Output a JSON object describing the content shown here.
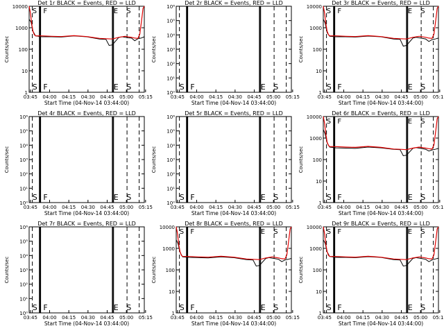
{
  "chart_data": [
    {
      "type": "line",
      "title": "Det 1r BLACK = Events, RED = LLD",
      "xlabel": "Start Time (04-Nov-14 03:44:00)",
      "ylabel": "Counts/sec",
      "yscale": "log",
      "ylim": [
        1,
        10000
      ],
      "y_ticks": [
        "1",
        "10",
        "100",
        "1000",
        "10000"
      ],
      "x_ticks": [
        "03:45",
        "04:00",
        "04:15",
        "04:30",
        "04:45",
        "05:00",
        "05:15"
      ],
      "markers": [
        "S",
        "F",
        "E",
        "S"
      ],
      "series": [
        {
          "color": "#000000",
          "x": [
            0,
            3,
            6,
            10,
            20,
            35,
            50,
            70,
            90,
            110,
            120,
            125,
            130,
            140,
            145,
            150,
            155,
            160,
            165,
            170,
            175,
            180
          ],
          "y": [
            2500,
            1800,
            700,
            420,
            380,
            380,
            370,
            420,
            380,
            300,
            290,
            150,
            160,
            350,
            380,
            360,
            340,
            330,
            250,
            310,
            330,
            380
          ]
        },
        {
          "color": "#e00000",
          "x": [
            0,
            2,
            4,
            6,
            8,
            10,
            20,
            35,
            50,
            70,
            90,
            110,
            120,
            130,
            140,
            150,
            160,
            165,
            170,
            173,
            176,
            178,
            180
          ],
          "y": [
            10000,
            5000,
            1500,
            700,
            480,
            420,
            420,
            400,
            390,
            430,
            390,
            320,
            310,
            300,
            360,
            400,
            360,
            330,
            320,
            500,
            2500,
            8000,
            10000
          ]
        }
      ]
    },
    {
      "type": "line",
      "title": "Det 2r BLACK = Events, RED = LLD",
      "xlabel": "Start Time (04-Nov-14 03:44:00)",
      "ylabel": "Counts/sec",
      "yscale": "log",
      "ylim": [
        1,
        1000000
      ],
      "y_ticks": [
        "10⁰",
        "10¹",
        "10²",
        "10³",
        "10⁴",
        "10⁵",
        "10⁶"
      ],
      "x_ticks": [
        "03:45",
        "04:00",
        "04:15",
        "04:30",
        "04:45",
        "05:00",
        "05:15"
      ],
      "markers": [
        "S",
        "F",
        "E",
        "S"
      ],
      "series": []
    },
    {
      "type": "line",
      "title": "Det 3r BLACK = Events, RED = LLD",
      "xlabel": "Start Time (04-Nov-14 03:44:00)",
      "ylabel": "Counts/sec",
      "yscale": "log",
      "ylim": [
        1,
        10000
      ],
      "y_ticks": [
        "1",
        "10",
        "100",
        "1000",
        "10000"
      ],
      "x_ticks": [
        "03:45",
        "04:00",
        "04:15",
        "04:30",
        "04:45",
        "05:00",
        "05:15"
      ],
      "markers": [
        "S",
        "F",
        "E",
        "S"
      ],
      "series": [
        {
          "color": "#000000",
          "x": [
            0,
            3,
            6,
            10,
            20,
            35,
            50,
            70,
            90,
            110,
            120,
            125,
            130,
            140,
            145,
            150,
            155,
            160,
            165,
            170,
            175,
            180
          ],
          "y": [
            2500,
            1600,
            600,
            400,
            380,
            380,
            370,
            410,
            380,
            300,
            290,
            140,
            150,
            330,
            360,
            340,
            320,
            300,
            230,
            280,
            300,
            330
          ]
        },
        {
          "color": "#e00000",
          "x": [
            0,
            2,
            4,
            6,
            8,
            10,
            20,
            35,
            50,
            70,
            90,
            110,
            120,
            130,
            140,
            150,
            160,
            165,
            170,
            173,
            176,
            178,
            180
          ],
          "y": [
            10000,
            5000,
            1500,
            700,
            480,
            420,
            420,
            400,
            390,
            430,
            390,
            320,
            310,
            300,
            360,
            400,
            360,
            330,
            320,
            500,
            2500,
            8000,
            10000
          ]
        }
      ]
    },
    {
      "type": "line",
      "title": "Det 4r BLACK = Events, RED = LLD",
      "xlabel": "Start Time (04-Nov-14 03:44:00)",
      "ylabel": "Counts/sec",
      "yscale": "log",
      "ylim": [
        1,
        1000000
      ],
      "y_ticks": [
        "10⁰",
        "10¹",
        "10²",
        "10³",
        "10⁴",
        "10⁵",
        "10⁶"
      ],
      "x_ticks": [
        "03:45",
        "04:00",
        "04:15",
        "04:30",
        "04:45",
        "05:00",
        "05:15"
      ],
      "markers": [
        "S",
        "F",
        "E",
        "S"
      ],
      "series": []
    },
    {
      "type": "line",
      "title": "Det 5r BLACK = Events, RED = LLD",
      "xlabel": "Start Time (04-Nov-14 03:44:00)",
      "ylabel": "Counts/sec",
      "yscale": "log",
      "ylim": [
        1,
        1000000
      ],
      "y_ticks": [
        "10⁰",
        "10¹",
        "10²",
        "10³",
        "10⁴",
        "10⁵",
        "10⁶"
      ],
      "x_ticks": [
        "03:45",
        "04:00",
        "04:15",
        "04:30",
        "04:45",
        "05:00",
        "05:15"
      ],
      "markers": [
        "S",
        "F",
        "E",
        "S"
      ],
      "series": []
    },
    {
      "type": "line",
      "title": "Det 6r BLACK = Events, RED = LLD",
      "xlabel": "Start Time (04-Nov-14 03:44:00)",
      "ylabel": "Counts/sec",
      "yscale": "log",
      "ylim": [
        1,
        10000
      ],
      "y_ticks": [
        "1",
        "10",
        "100",
        "1000",
        "10000"
      ],
      "x_ticks": [
        "03:45",
        "04:00",
        "04:15",
        "04:30",
        "04:45",
        "05:00",
        "05:15"
      ],
      "markers": [
        "S",
        "F",
        "E",
        "S"
      ],
      "series": [
        {
          "color": "#000000",
          "x": [
            0,
            3,
            6,
            10,
            20,
            35,
            50,
            70,
            90,
            110,
            120,
            125,
            130,
            140,
            145,
            150,
            155,
            160,
            165,
            170,
            175,
            180
          ],
          "y": [
            2500,
            1500,
            600,
            380,
            350,
            340,
            330,
            380,
            350,
            300,
            290,
            150,
            160,
            330,
            360,
            340,
            320,
            300,
            250,
            280,
            300,
            330
          ]
        },
        {
          "color": "#e00000",
          "x": [
            0,
            2,
            4,
            6,
            8,
            10,
            20,
            35,
            50,
            70,
            90,
            110,
            120,
            130,
            140,
            150,
            160,
            165,
            170,
            173,
            176,
            178,
            180
          ],
          "y": [
            10000,
            5000,
            1500,
            650,
            460,
            400,
            400,
            380,
            370,
            410,
            370,
            310,
            300,
            290,
            340,
            380,
            340,
            320,
            310,
            480,
            2400,
            8000,
            10000
          ]
        }
      ]
    },
    {
      "type": "line",
      "title": "Det 7r BLACK = Events, RED = LLD",
      "xlabel": "Start Time (04-Nov-14 03:44:00)",
      "ylabel": "Counts/sec",
      "yscale": "log",
      "ylim": [
        1,
        1000000
      ],
      "y_ticks": [
        "10⁰",
        "10¹",
        "10²",
        "10³",
        "10⁴",
        "10⁵",
        "10⁶"
      ],
      "x_ticks": [
        "03:45",
        "04:00",
        "04:15",
        "04:30",
        "04:45",
        "05:00",
        "05:15"
      ],
      "markers": [
        "S",
        "F",
        "E",
        "S"
      ],
      "series": []
    },
    {
      "type": "line",
      "title": "Det 8r BLACK = Events, RED = LLD",
      "xlabel": "Start Time (04-Nov-14 03:44:00)",
      "ylabel": "Counts/sec",
      "yscale": "log",
      "ylim": [
        1,
        10000
      ],
      "y_ticks": [
        "1",
        "10",
        "100",
        "1000",
        "10000"
      ],
      "x_ticks": [
        "03:45",
        "04:00",
        "04:15",
        "04:30",
        "04:45",
        "05:00",
        "05:15"
      ],
      "markers": [
        "S",
        "F",
        "E",
        "S"
      ],
      "series": [
        {
          "color": "#000000",
          "x": [
            0,
            3,
            6,
            10,
            20,
            35,
            50,
            70,
            90,
            110,
            120,
            125,
            130,
            140,
            145,
            150,
            155,
            160,
            165,
            170,
            175,
            180
          ],
          "y": [
            2500,
            1600,
            650,
            400,
            380,
            370,
            360,
            400,
            370,
            300,
            290,
            150,
            160,
            340,
            370,
            350,
            330,
            310,
            240,
            290,
            310,
            340
          ]
        },
        {
          "color": "#e00000",
          "x": [
            0,
            2,
            4,
            6,
            8,
            10,
            20,
            35,
            50,
            70,
            90,
            110,
            120,
            130,
            140,
            150,
            160,
            165,
            170,
            173,
            176,
            178,
            180
          ],
          "y": [
            10000,
            5000,
            1500,
            700,
            480,
            420,
            420,
            400,
            390,
            430,
            390,
            320,
            310,
            300,
            360,
            400,
            360,
            330,
            320,
            500,
            2500,
            8000,
            10000
          ]
        }
      ]
    },
    {
      "type": "line",
      "title": "Det 9r BLACK = Events, RED = LLD",
      "xlabel": "Start Time (04-Nov-14 03:44:00)",
      "ylabel": "Counts/sec",
      "yscale": "log",
      "ylim": [
        1,
        10000
      ],
      "y_ticks": [
        "1",
        "10",
        "100",
        "1000",
        "10000"
      ],
      "x_ticks": [
        "03:45",
        "04:00",
        "04:15",
        "04:30",
        "04:45",
        "05:00",
        "05:15"
      ],
      "markers": [
        "S",
        "F",
        "E",
        "S"
      ],
      "series": [
        {
          "color": "#000000",
          "x": [
            0,
            3,
            6,
            10,
            20,
            35,
            50,
            70,
            90,
            110,
            120,
            125,
            130,
            140,
            145,
            150,
            155,
            160,
            165,
            170,
            175,
            180
          ],
          "y": [
            2500,
            1700,
            700,
            420,
            380,
            380,
            370,
            410,
            380,
            300,
            290,
            150,
            160,
            340,
            370,
            350,
            330,
            310,
            240,
            290,
            320,
            350
          ]
        },
        {
          "color": "#e00000",
          "x": [
            0,
            2,
            4,
            6,
            8,
            10,
            20,
            35,
            50,
            70,
            90,
            110,
            120,
            130,
            140,
            150,
            160,
            165,
            170,
            173,
            176,
            178,
            180
          ],
          "y": [
            10000,
            5000,
            1500,
            700,
            480,
            420,
            420,
            400,
            390,
            430,
            390,
            320,
            310,
            300,
            360,
            400,
            360,
            330,
            320,
            500,
            2500,
            8000,
            10000
          ]
        }
      ]
    }
  ]
}
